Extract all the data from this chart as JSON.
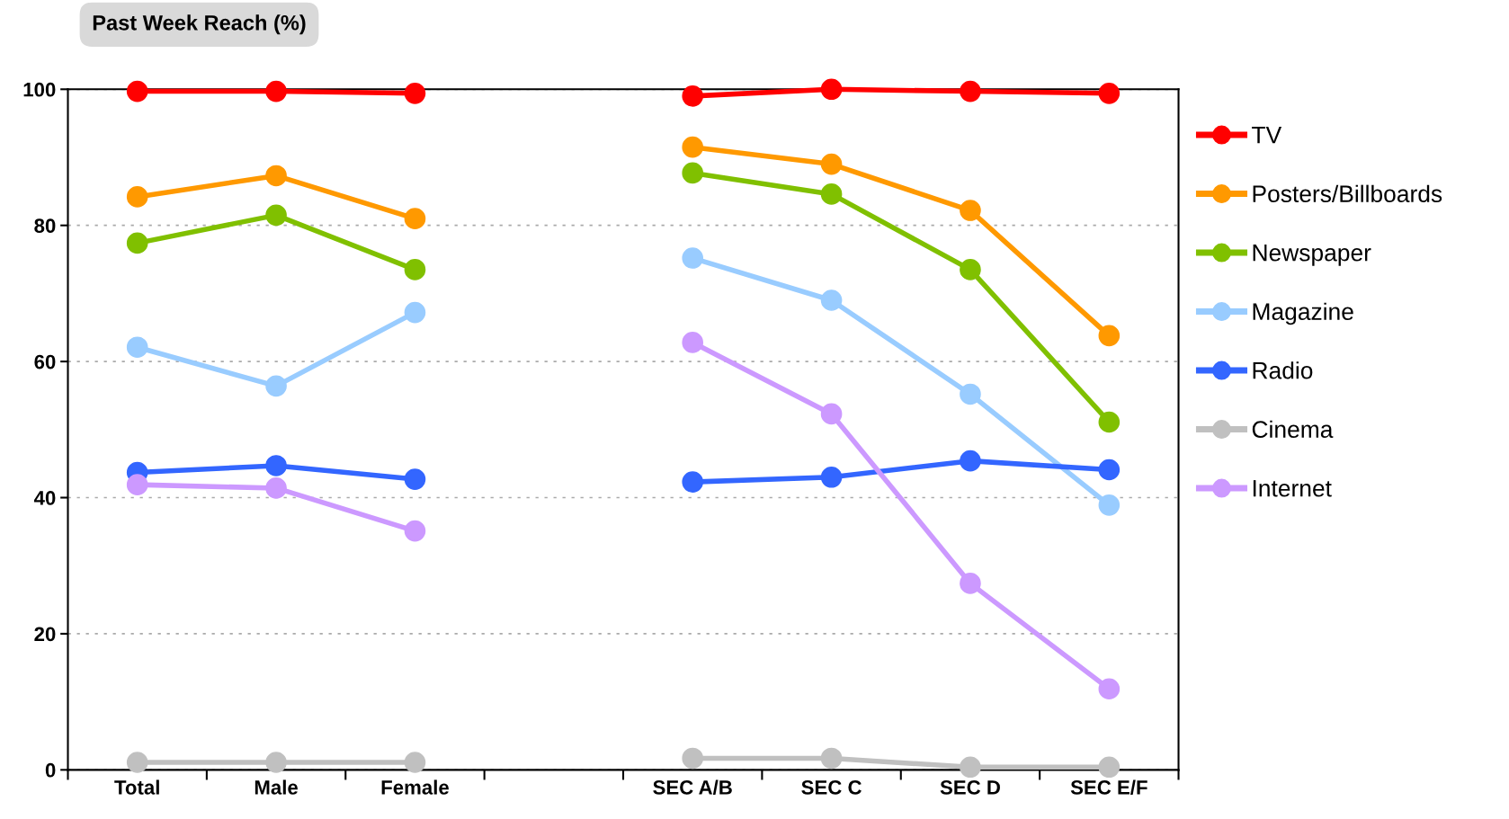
{
  "chart_data": {
    "type": "line",
    "title": "Past Week Reach (%)",
    "categories": [
      "Total",
      "Male",
      "Female",
      null,
      "SEC A/B",
      "SEC C",
      "SEC D",
      "SEC E/F"
    ],
    "series": [
      {
        "name": "TV",
        "color": "#ff0000",
        "values": [
          99.7,
          99.7,
          99.4,
          null,
          99.0,
          100.0,
          99.7,
          99.4
        ]
      },
      {
        "name": "Posters/Billboards",
        "color": "#ff9900",
        "values": [
          84.2,
          87.3,
          81.0,
          null,
          91.5,
          89.0,
          82.2,
          63.8
        ]
      },
      {
        "name": "Newspaper",
        "color": "#80c000",
        "values": [
          77.4,
          81.5,
          73.5,
          null,
          87.7,
          84.6,
          73.5,
          51.1
        ]
      },
      {
        "name": "Magazine",
        "color": "#99ccff",
        "values": [
          62.1,
          56.4,
          67.2,
          null,
          75.2,
          69.0,
          55.2,
          38.9
        ]
      },
      {
        "name": "Radio",
        "color": "#3366ff",
        "values": [
          43.7,
          44.7,
          42.7,
          null,
          42.3,
          43.0,
          45.4,
          44.1
        ]
      },
      {
        "name": "Cinema",
        "color": "#c0c0c0",
        "values": [
          1.1,
          1.1,
          1.1,
          null,
          1.7,
          1.7,
          0.4,
          0.4
        ]
      },
      {
        "name": "Internet",
        "color": "#cc99ff",
        "values": [
          41.9,
          41.4,
          35.1,
          null,
          62.8,
          52.3,
          27.4,
          11.9
        ]
      }
    ],
    "ylim": [
      0,
      100
    ],
    "yticks": [
      0,
      20,
      40,
      60,
      80,
      100
    ],
    "grid": "y",
    "legend": "right",
    "marker": "circle",
    "line_style": "solid"
  }
}
